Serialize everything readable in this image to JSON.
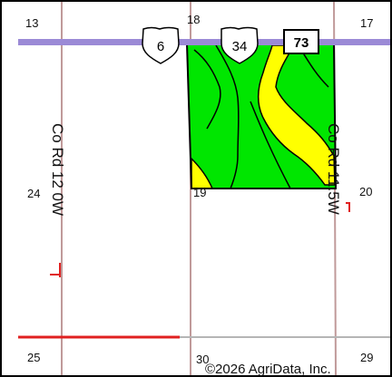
{
  "map": {
    "section_numbers": {
      "nw": "13",
      "n_mid": "18",
      "ne": "17",
      "w_mid": "24",
      "center": "19",
      "e_mid": "20",
      "sw": "25",
      "s_mid": "30",
      "se": "29"
    },
    "road_labels": {
      "west": "Co Rd 12 0W",
      "east": "Co Rd 11.5W"
    },
    "shields": [
      {
        "name": "us-6",
        "label": "6",
        "type": "us-highway"
      },
      {
        "name": "us-34",
        "label": "34",
        "type": "us-highway"
      },
      {
        "name": "state-73",
        "label": "73",
        "type": "state-route"
      }
    ],
    "copyright": "©2026 AgriData, Inc.",
    "colors": {
      "highway": "#9b8ad6",
      "section_line": "#c09a9a",
      "soil_green": "#00e600",
      "soil_yellow": "#ffff00",
      "soil_boundary": "#000000",
      "red_marks": "#e02020",
      "frame": "#000000"
    }
  }
}
